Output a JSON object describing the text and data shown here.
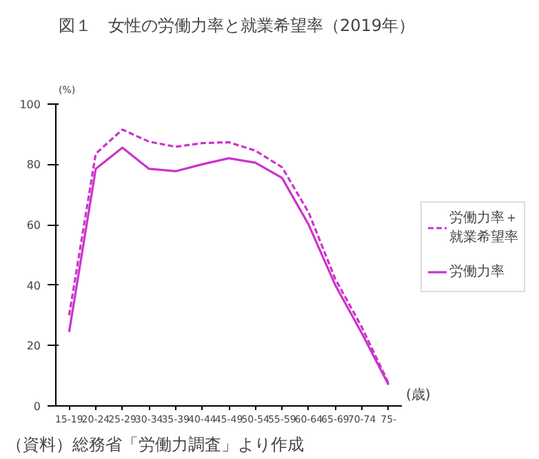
{
  "chart_data": {
    "type": "line",
    "title": "図１　女性の労働力率と就業希望率（2019年）",
    "ylabel": "(%)",
    "xlabel": "(歳)",
    "categories": [
      "15-19",
      "20-24",
      "25-29",
      "30-34",
      "35-39",
      "40-44",
      "45-49",
      "50-54",
      "55-59",
      "60-64",
      "65-69",
      "70-74",
      "75-"
    ],
    "series": [
      {
        "name": "労働力率＋就業希望率",
        "color": "#cc33cc",
        "line_style": "dashed",
        "values": [
          30,
          83.5,
          91.5,
          87.5,
          85.8,
          87,
          87.3,
          84.5,
          79,
          64,
          42,
          26,
          7.5
        ]
      },
      {
        "name": "労働力率",
        "color": "#cc33cc",
        "line_style": "solid",
        "values": [
          24.5,
          78.5,
          85.5,
          78.5,
          77.7,
          80,
          82,
          80.5,
          75.5,
          60,
          40,
          24,
          7
        ]
      }
    ],
    "ylim": [
      0,
      100
    ],
    "yticks": [
      0,
      20,
      40,
      60,
      80,
      100
    ],
    "grid": false,
    "legend": "right",
    "marker": "none",
    "annotations": [
      "（資料）総務省「労働力調査」より作成"
    ]
  }
}
